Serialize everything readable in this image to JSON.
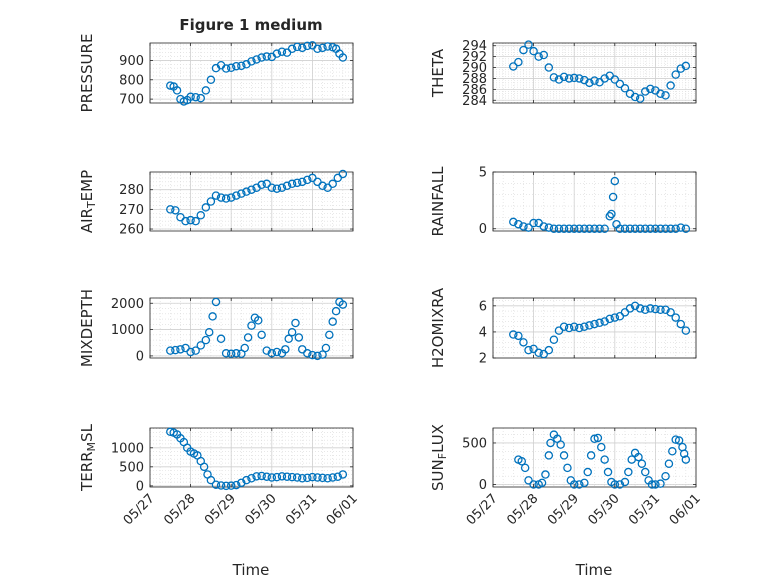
{
  "figure": {
    "title": "Figure 1 medium",
    "xlabel_left": "Time",
    "xlabel_right": "Time"
  },
  "chart_data": [
    {
      "type": "scatter",
      "name": "pressure",
      "title": "Figure 1 medium",
      "ylabel_parts": [
        [
          "PRESSURE",
          ""
        ]
      ],
      "ylim": [
        680,
        990
      ],
      "yticks": [
        700,
        800,
        900
      ],
      "yticklabels": [
        "700",
        "800",
        "900"
      ],
      "xlim": [
        "2024-05-27",
        "2024-06-01"
      ],
      "grid": true,
      "color": "#0072BD",
      "x": [
        "2024-05-27T12:00",
        "2024-05-27T14:00",
        "2024-05-27T16:00",
        "2024-05-27T18:00",
        "2024-05-27T20:00",
        "2024-05-27T22:00",
        "2024-05-28T00:00",
        "2024-05-28T03:00",
        "2024-05-28T06:00",
        "2024-05-28T09:00",
        "2024-05-28T12:00",
        "2024-05-28T15:00",
        "2024-05-28T18:00",
        "2024-05-28T21:00",
        "2024-05-29T00:00",
        "2024-05-29T03:00",
        "2024-05-29T06:00",
        "2024-05-29T09:00",
        "2024-05-29T12:00",
        "2024-05-29T15:00",
        "2024-05-29T18:00",
        "2024-05-29T21:00",
        "2024-05-30T00:00",
        "2024-05-30T03:00",
        "2024-05-30T06:00",
        "2024-05-30T09:00",
        "2024-05-30T12:00",
        "2024-05-30T15:00",
        "2024-05-30T18:00",
        "2024-05-30T21:00",
        "2024-05-31T00:00",
        "2024-05-31T03:00",
        "2024-05-31T06:00",
        "2024-05-31T09:00",
        "2024-05-31T12:00",
        "2024-05-31T14:00",
        "2024-05-31T16:00",
        "2024-05-31T18:00"
      ],
      "y": [
        770,
        765,
        745,
        700,
        688,
        695,
        712,
        710,
        705,
        745,
        800,
        860,
        875,
        858,
        862,
        870,
        872,
        880,
        895,
        905,
        915,
        920,
        918,
        935,
        945,
        940,
        960,
        970,
        965,
        975,
        978,
        960,
        965,
        972,
        968,
        960,
        935,
        915
      ]
    },
    {
      "type": "scatter",
      "name": "theta",
      "ylabel_parts": [
        [
          "THETA",
          ""
        ]
      ],
      "ylim": [
        283.5,
        294.5
      ],
      "yticks": [
        284,
        286,
        288,
        290,
        292,
        294
      ],
      "yticklabels": [
        "284",
        "286",
        "288",
        "290",
        "292",
        "294"
      ],
      "xlim": [
        "2024-05-27",
        "2024-06-01"
      ],
      "grid": true,
      "color": "#0072BD",
      "x": [
        "2024-05-27T12:00",
        "2024-05-27T15:00",
        "2024-05-27T18:00",
        "2024-05-27T21:00",
        "2024-05-28T00:00",
        "2024-05-28T03:00",
        "2024-05-28T06:00",
        "2024-05-28T09:00",
        "2024-05-28T12:00",
        "2024-05-28T15:00",
        "2024-05-28T18:00",
        "2024-05-28T21:00",
        "2024-05-29T00:00",
        "2024-05-29T03:00",
        "2024-05-29T06:00",
        "2024-05-29T09:00",
        "2024-05-29T12:00",
        "2024-05-29T15:00",
        "2024-05-29T18:00",
        "2024-05-29T21:00",
        "2024-05-30T00:00",
        "2024-05-30T03:00",
        "2024-05-30T06:00",
        "2024-05-30T09:00",
        "2024-05-30T12:00",
        "2024-05-30T15:00",
        "2024-05-30T18:00",
        "2024-05-30T21:00",
        "2024-05-31T00:00",
        "2024-05-31T03:00",
        "2024-05-31T06:00",
        "2024-05-31T09:00",
        "2024-05-31T12:00",
        "2024-05-31T15:00",
        "2024-05-31T18:00"
      ],
      "y": [
        290.2,
        291.0,
        293.2,
        294.2,
        293.0,
        292.0,
        292.3,
        290.0,
        288.2,
        287.8,
        288.3,
        288.0,
        288.1,
        288.0,
        287.7,
        287.2,
        287.6,
        287.3,
        288.0,
        288.5,
        287.8,
        287.0,
        286.2,
        285.2,
        284.6,
        284.3,
        285.6,
        286.1,
        285.8,
        285.2,
        284.9,
        286.7,
        288.7,
        289.8,
        290.3
      ]
    },
    {
      "type": "scatter",
      "name": "air_temp",
      "ylabel_parts": [
        [
          "AIR",
          ""
        ],
        [
          "T",
          "sub"
        ],
        [
          "EMP",
          ""
        ]
      ],
      "ylim": [
        259,
        289
      ],
      "yticks": [
        260,
        270,
        280
      ],
      "yticklabels": [
        "260",
        "270",
        "280"
      ],
      "xlim": [
        "2024-05-27",
        "2024-06-01"
      ],
      "grid": true,
      "color": "#0072BD",
      "x": [
        "2024-05-27T12:00",
        "2024-05-27T15:00",
        "2024-05-27T18:00",
        "2024-05-27T21:00",
        "2024-05-28T00:00",
        "2024-05-28T03:00",
        "2024-05-28T06:00",
        "2024-05-28T09:00",
        "2024-05-28T12:00",
        "2024-05-28T15:00",
        "2024-05-28T18:00",
        "2024-05-28T21:00",
        "2024-05-29T00:00",
        "2024-05-29T03:00",
        "2024-05-29T06:00",
        "2024-05-29T09:00",
        "2024-05-29T12:00",
        "2024-05-29T15:00",
        "2024-05-29T18:00",
        "2024-05-29T21:00",
        "2024-05-30T00:00",
        "2024-05-30T03:00",
        "2024-05-30T06:00",
        "2024-05-30T09:00",
        "2024-05-30T12:00",
        "2024-05-30T15:00",
        "2024-05-30T18:00",
        "2024-05-30T21:00",
        "2024-05-31T00:00",
        "2024-05-31T03:00",
        "2024-05-31T06:00",
        "2024-05-31T09:00",
        "2024-05-31T12:00",
        "2024-05-31T15:00",
        "2024-05-31T18:00"
      ],
      "y": [
        270,
        269.5,
        266,
        264,
        264.5,
        264,
        267,
        271,
        274,
        277,
        276,
        275.5,
        276,
        277,
        278,
        279,
        280,
        281,
        282.5,
        283,
        281,
        280.5,
        281,
        282,
        283,
        283.5,
        284,
        285,
        286,
        284,
        282,
        281,
        283,
        286,
        288
      ]
    },
    {
      "type": "scatter",
      "name": "rainfall",
      "ylabel_parts": [
        [
          "RAINFALL",
          ""
        ]
      ],
      "ylim": [
        -0.2,
        5
      ],
      "yticks": [
        0,
        5
      ],
      "yticklabels": [
        "0",
        "5"
      ],
      "xlim": [
        "2024-05-27",
        "2024-06-01"
      ],
      "grid": true,
      "color": "#0072BD",
      "x": [
        "2024-05-27T12:00",
        "2024-05-27T15:00",
        "2024-05-27T18:00",
        "2024-05-27T21:00",
        "2024-05-28T00:00",
        "2024-05-28T03:00",
        "2024-05-28T06:00",
        "2024-05-28T09:00",
        "2024-05-28T12:00",
        "2024-05-28T15:00",
        "2024-05-28T18:00",
        "2024-05-28T21:00",
        "2024-05-29T00:00",
        "2024-05-29T03:00",
        "2024-05-29T06:00",
        "2024-05-29T09:00",
        "2024-05-29T12:00",
        "2024-05-29T15:00",
        "2024-05-29T18:00",
        "2024-05-29T21:00",
        "2024-05-29T22:00",
        "2024-05-29T23:00",
        "2024-05-30T00:00",
        "2024-05-30T01:00",
        "2024-05-30T03:00",
        "2024-05-30T06:00",
        "2024-05-30T09:00",
        "2024-05-30T12:00",
        "2024-05-30T15:00",
        "2024-05-30T18:00",
        "2024-05-30T21:00",
        "2024-05-31T00:00",
        "2024-05-31T03:00",
        "2024-05-31T06:00",
        "2024-05-31T09:00",
        "2024-05-31T12:00",
        "2024-05-31T15:00",
        "2024-05-31T18:00"
      ],
      "y": [
        0.6,
        0.4,
        0.2,
        0.1,
        0.5,
        0.5,
        0.2,
        0.1,
        0,
        0,
        0,
        0,
        0,
        0,
        0,
        0,
        0,
        0,
        0,
        1.1,
        1.3,
        2.8,
        4.2,
        0.4,
        0,
        0,
        0,
        0,
        0,
        0,
        0,
        0,
        0,
        0,
        0,
        0,
        0.1,
        0
      ]
    },
    {
      "type": "scatter",
      "name": "mixdepth",
      "ylabel_parts": [
        [
          "MIXDEPTH",
          ""
        ]
      ],
      "ylim": [
        -80,
        2200
      ],
      "yticks": [
        0,
        1000,
        2000
      ],
      "yticklabels": [
        "0",
        "1000",
        "2000"
      ],
      "xlim": [
        "2024-05-27",
        "2024-06-01"
      ],
      "grid": true,
      "color": "#0072BD",
      "x": [
        "2024-05-27T12:00",
        "2024-05-27T15:00",
        "2024-05-27T18:00",
        "2024-05-27T21:00",
        "2024-05-28T00:00",
        "2024-05-28T03:00",
        "2024-05-28T06:00",
        "2024-05-28T09:00",
        "2024-05-28T11:00",
        "2024-05-28T13:00",
        "2024-05-28T15:00",
        "2024-05-28T18:00",
        "2024-05-28T21:00",
        "2024-05-29T00:00",
        "2024-05-29T03:00",
        "2024-05-29T06:00",
        "2024-05-29T08:00",
        "2024-05-29T10:00",
        "2024-05-29T12:00",
        "2024-05-29T14:00",
        "2024-05-29T16:00",
        "2024-05-29T18:00",
        "2024-05-29T21:00",
        "2024-05-30T00:00",
        "2024-05-30T03:00",
        "2024-05-30T06:00",
        "2024-05-30T08:00",
        "2024-05-30T10:00",
        "2024-05-30T12:00",
        "2024-05-30T14:00",
        "2024-05-30T16:00",
        "2024-05-30T18:00",
        "2024-05-30T21:00",
        "2024-05-31T00:00",
        "2024-05-31T03:00",
        "2024-05-31T06:00",
        "2024-05-31T08:00",
        "2024-05-31T10:00",
        "2024-05-31T12:00",
        "2024-05-31T14:00",
        "2024-05-31T16:00",
        "2024-05-31T18:00"
      ],
      "y": [
        200,
        220,
        250,
        300,
        150,
        200,
        400,
        600,
        900,
        1500,
        2050,
        650,
        100,
        80,
        100,
        80,
        300,
        700,
        1150,
        1450,
        1350,
        800,
        200,
        100,
        150,
        100,
        250,
        650,
        900,
        1250,
        700,
        250,
        100,
        30,
        0,
        50,
        300,
        800,
        1300,
        1700,
        2050,
        1950
      ]
    },
    {
      "type": "scatter",
      "name": "h2omixra",
      "ylabel_parts": [
        [
          "H2OMIXRA",
          ""
        ]
      ],
      "ylim": [
        2,
        6.6
      ],
      "yticks": [
        2,
        4,
        6
      ],
      "yticklabels": [
        "2",
        "4",
        "6"
      ],
      "xlim": [
        "2024-05-27",
        "2024-06-01"
      ],
      "grid": true,
      "color": "#0072BD",
      "x": [
        "2024-05-27T12:00",
        "2024-05-27T15:00",
        "2024-05-27T18:00",
        "2024-05-27T21:00",
        "2024-05-28T00:00",
        "2024-05-28T03:00",
        "2024-05-28T06:00",
        "2024-05-28T09:00",
        "2024-05-28T12:00",
        "2024-05-28T15:00",
        "2024-05-28T18:00",
        "2024-05-28T21:00",
        "2024-05-29T00:00",
        "2024-05-29T03:00",
        "2024-05-29T06:00",
        "2024-05-29T09:00",
        "2024-05-29T12:00",
        "2024-05-29T15:00",
        "2024-05-29T18:00",
        "2024-05-29T21:00",
        "2024-05-30T00:00",
        "2024-05-30T03:00",
        "2024-05-30T06:00",
        "2024-05-30T09:00",
        "2024-05-30T12:00",
        "2024-05-30T15:00",
        "2024-05-30T18:00",
        "2024-05-30T21:00",
        "2024-05-31T00:00",
        "2024-05-31T03:00",
        "2024-05-31T06:00",
        "2024-05-31T09:00",
        "2024-05-31T12:00",
        "2024-05-31T15:00",
        "2024-05-31T18:00"
      ],
      "y": [
        3.8,
        3.7,
        3.2,
        2.6,
        2.7,
        2.4,
        2.3,
        2.6,
        3.4,
        4.1,
        4.4,
        4.3,
        4.4,
        4.3,
        4.4,
        4.5,
        4.6,
        4.7,
        4.8,
        5.0,
        5.1,
        5.2,
        5.5,
        5.8,
        6.0,
        5.8,
        5.7,
        5.8,
        5.75,
        5.7,
        5.7,
        5.5,
        5.1,
        4.6,
        4.1
      ]
    },
    {
      "type": "scatter",
      "name": "terr_msl",
      "ylabel_parts": [
        [
          "TERR",
          ""
        ],
        [
          "M",
          "sub"
        ],
        [
          "SL",
          ""
        ]
      ],
      "ylim": [
        -30,
        1520
      ],
      "yticks": [
        0,
        500,
        1000
      ],
      "yticklabels": [
        "0",
        "500",
        "1000"
      ],
      "xlim": [
        "2024-05-27",
        "2024-06-01"
      ],
      "grid": true,
      "color": "#0072BD",
      "x": [
        "2024-05-27T12:00",
        "2024-05-27T14:00",
        "2024-05-27T16:00",
        "2024-05-27T18:00",
        "2024-05-27T20:00",
        "2024-05-27T22:00",
        "2024-05-28T00:00",
        "2024-05-28T02:00",
        "2024-05-28T04:00",
        "2024-05-28T06:00",
        "2024-05-28T08:00",
        "2024-05-28T10:00",
        "2024-05-28T12:00",
        "2024-05-28T15:00",
        "2024-05-28T18:00",
        "2024-05-28T21:00",
        "2024-05-29T00:00",
        "2024-05-29T03:00",
        "2024-05-29T06:00",
        "2024-05-29T09:00",
        "2024-05-29T12:00",
        "2024-05-29T15:00",
        "2024-05-29T18:00",
        "2024-05-29T21:00",
        "2024-05-30T00:00",
        "2024-05-30T03:00",
        "2024-05-30T06:00",
        "2024-05-30T09:00",
        "2024-05-30T12:00",
        "2024-05-30T15:00",
        "2024-05-30T18:00",
        "2024-05-30T21:00",
        "2024-05-31T00:00",
        "2024-05-31T03:00",
        "2024-05-31T06:00",
        "2024-05-31T09:00",
        "2024-05-31T12:00",
        "2024-05-31T15:00",
        "2024-05-31T18:00"
      ],
      "y": [
        1420,
        1400,
        1350,
        1250,
        1150,
        1000,
        900,
        850,
        800,
        650,
        500,
        300,
        150,
        30,
        10,
        0,
        5,
        20,
        80,
        150,
        200,
        250,
        260,
        240,
        220,
        230,
        250,
        240,
        230,
        220,
        200,
        210,
        230,
        220,
        210,
        200,
        220,
        240,
        300
      ]
    },
    {
      "type": "scatter",
      "name": "sun_flux",
      "ylabel_parts": [
        [
          "SUN",
          ""
        ],
        [
          "F",
          "sub"
        ],
        [
          "LUX",
          ""
        ]
      ],
      "ylim": [
        -30,
        680
      ],
      "yticks": [
        0,
        500
      ],
      "yticklabels": [
        "0",
        "500"
      ],
      "xlim": [
        "2024-05-27",
        "2024-06-01"
      ],
      "grid": true,
      "color": "#0072BD",
      "xticklabels": [
        "05/27",
        "05/28",
        "05/29",
        "05/30",
        "05/31",
        "06/01"
      ],
      "x": [
        "2024-05-27T15:00",
        "2024-05-27T17:00",
        "2024-05-27T19:00",
        "2024-05-27T21:00",
        "2024-05-28T00:00",
        "2024-05-28T03:00",
        "2024-05-28T05:00",
        "2024-05-28T07:00",
        "2024-05-28T09:00",
        "2024-05-28T10:00",
        "2024-05-28T12:00",
        "2024-05-28T14:00",
        "2024-05-28T16:00",
        "2024-05-28T18:00",
        "2024-05-28T20:00",
        "2024-05-28T22:00",
        "2024-05-29T00:00",
        "2024-05-29T03:00",
        "2024-05-29T06:00",
        "2024-05-29T08:00",
        "2024-05-29T10:00",
        "2024-05-29T12:00",
        "2024-05-29T14:00",
        "2024-05-29T16:00",
        "2024-05-29T18:00",
        "2024-05-29T20:00",
        "2024-05-29T22:00",
        "2024-05-30T00:00",
        "2024-05-30T03:00",
        "2024-05-30T06:00",
        "2024-05-30T08:00",
        "2024-05-30T10:00",
        "2024-05-30T12:00",
        "2024-05-30T14:00",
        "2024-05-30T16:00",
        "2024-05-30T18:00",
        "2024-05-30T20:00",
        "2024-05-30T22:00",
        "2024-05-31T00:00",
        "2024-05-31T03:00",
        "2024-05-31T06:00",
        "2024-05-31T08:00",
        "2024-05-31T10:00",
        "2024-05-31T12:00",
        "2024-05-31T14:00",
        "2024-05-31T16:00",
        "2024-05-31T17:00",
        "2024-05-31T18:00"
      ],
      "y": [
        300,
        280,
        200,
        50,
        0,
        0,
        20,
        120,
        350,
        500,
        600,
        550,
        480,
        350,
        200,
        50,
        0,
        0,
        20,
        150,
        350,
        550,
        560,
        450,
        300,
        150,
        30,
        0,
        0,
        30,
        150,
        300,
        380,
        330,
        250,
        150,
        50,
        0,
        0,
        10,
        100,
        250,
        400,
        540,
        530,
        450,
        370,
        300
      ]
    }
  ]
}
